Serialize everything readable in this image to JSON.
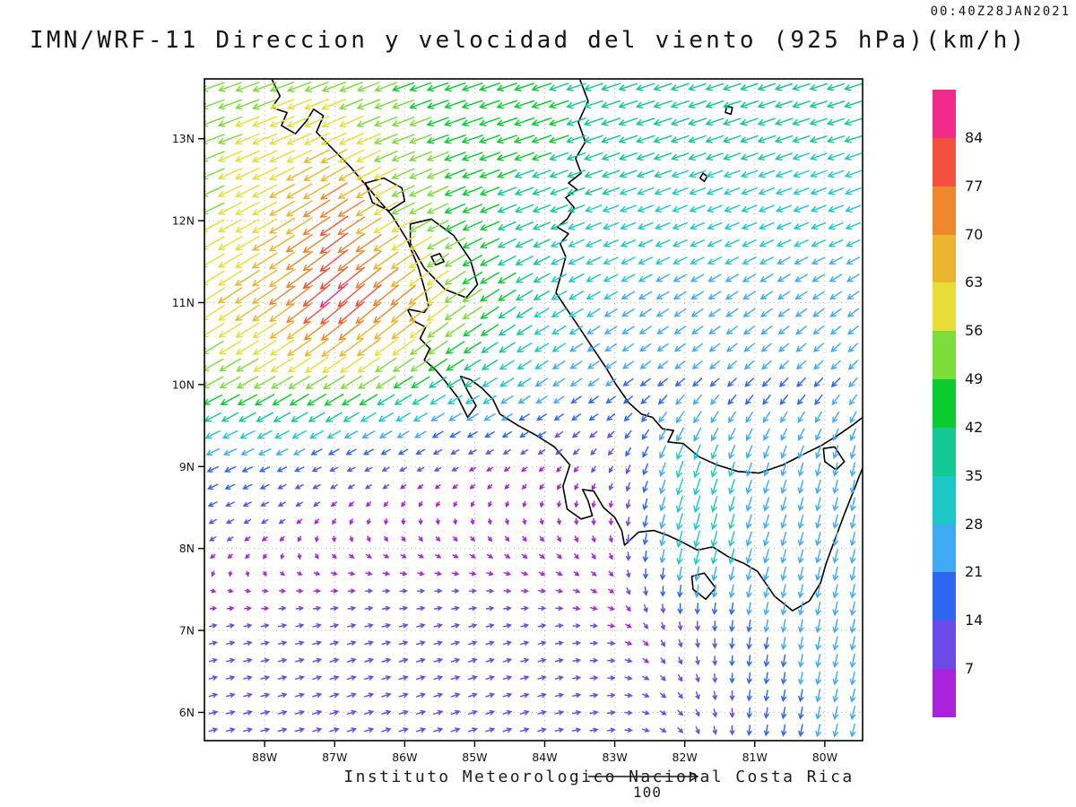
{
  "header": {
    "title": "IMN/WRF-11 Direccion y velocidad del viento (925 hPa)(km/h)",
    "timestamp": "00:40Z28JAN2021"
  },
  "footer": {
    "caption": "Instituto Meteorologico Nacional Costa Rica",
    "reference_value": "100"
  },
  "axes": {
    "lat_ticks": [
      "13N",
      "12N",
      "11N",
      "10N",
      "9N",
      "8N",
      "7N",
      "6N"
    ],
    "lat_values": [
      13,
      12,
      11,
      10,
      9,
      8,
      7,
      6
    ],
    "lon_ticks": [
      "88W",
      "87W",
      "86W",
      "85W",
      "84W",
      "83W",
      "82W",
      "81W",
      "80W"
    ],
    "lon_values": [
      -88,
      -87,
      -86,
      -85,
      -84,
      -83,
      -82,
      -81,
      -80
    ]
  },
  "colorbar": {
    "levels": [
      7,
      14,
      21,
      28,
      35,
      42,
      49,
      56,
      63,
      70,
      77,
      84
    ],
    "colors": [
      "#AA23DC",
      "#6A4BE6",
      "#2E66F0",
      "#41AAF5",
      "#1FC8C8",
      "#12C993",
      "#0ACC2E",
      "#7CDC3A",
      "#E6DE38",
      "#EBB52F",
      "#F0862B",
      "#F5503C",
      "#F02B8C"
    ]
  },
  "chart_data": {
    "type": "vector_field",
    "title": "IMN/WRF-11 Direccion y velocidad del viento (925 hPa)(km/h)",
    "valid_time_label": "00:40Z28JAN2021",
    "units": "km/h",
    "reference_vector_kmh": 100,
    "lon_range": [
      -88.86,
      -79.46
    ],
    "lat_range": [
      5.655,
      13.73
    ],
    "speed_levels_kmh": [
      7,
      14,
      21,
      28,
      35,
      42,
      49,
      56,
      63,
      70,
      77,
      84
    ],
    "grid": {
      "lats": [
        14,
        13,
        12,
        11,
        10,
        9,
        8,
        7,
        6
      ],
      "lons": [
        -89,
        -88,
        -87,
        -86,
        -85,
        -84,
        -83,
        -82,
        -81,
        -80,
        -79
      ],
      "u_kmh": [
        [
          -48,
          -50,
          -48,
          -44,
          -42,
          -40,
          -38,
          -36,
          -35,
          -35,
          -35
        ],
        [
          -50,
          -54,
          -56,
          -48,
          -44,
          -41,
          -38,
          -36,
          -35,
          -34,
          -34
        ],
        [
          -48,
          -54,
          -64,
          -50,
          -40,
          -34,
          -30,
          -28,
          -28,
          -28,
          -29
        ],
        [
          -50,
          -56,
          -64,
          -56,
          -42,
          -30,
          -24,
          -22,
          -22,
          -20,
          -20
        ],
        [
          -42,
          -46,
          -46,
          -40,
          -30,
          -22,
          -17,
          -15,
          -14,
          -14,
          -15
        ],
        [
          -20,
          -16,
          -11,
          -8,
          -6,
          -5,
          -4,
          -12,
          -8,
          -6,
          -4
        ],
        [
          -6,
          -3,
          2,
          4,
          4,
          4,
          2,
          -8,
          -8,
          -6,
          -5
        ],
        [
          9,
          10,
          11,
          11,
          10,
          9,
          7,
          2,
          -3,
          -5,
          -5
        ],
        [
          11,
          12,
          13,
          13,
          12,
          11,
          9,
          5,
          -2,
          -5,
          -6
        ]
      ],
      "v_kmh": [
        [
          -16,
          -17,
          -16,
          -15,
          -14,
          -13,
          -12,
          -12,
          -11,
          -11,
          -11
        ],
        [
          -18,
          -22,
          -26,
          -18,
          -15,
          -14,
          -13,
          -12,
          -12,
          -11,
          -11
        ],
        [
          -24,
          -30,
          -44,
          -26,
          -17,
          -13,
          -11,
          -11,
          -11,
          -11,
          -12
        ],
        [
          -32,
          -38,
          -56,
          -46,
          -28,
          -18,
          -14,
          -14,
          -15,
          -14,
          -15
        ],
        [
          -22,
          -26,
          -28,
          -24,
          -18,
          -14,
          -12,
          -13,
          -14,
          -15,
          -17
        ],
        [
          -9,
          -7,
          -5,
          -4,
          -3,
          -4,
          -7,
          -34,
          -24,
          -24,
          -26
        ],
        [
          -4,
          -3,
          -3,
          -3,
          -3,
          -4,
          -6,
          -34,
          -26,
          -24,
          -25
        ],
        [
          2,
          2,
          3,
          3,
          3,
          2,
          -1,
          -10,
          -20,
          -24,
          -26
        ],
        [
          3,
          3,
          4,
          4,
          4,
          3,
          1,
          -6,
          -16,
          -22,
          -25
        ]
      ]
    }
  },
  "map_outline": {
    "pacific_coast": [
      [
        -87.9,
        13.73
      ],
      [
        -87.78,
        13.52
      ],
      [
        -87.9,
        13.38
      ],
      [
        -87.68,
        13.32
      ],
      [
        -87.76,
        13.16
      ],
      [
        -87.56,
        13.06
      ],
      [
        -87.4,
        13.22
      ],
      [
        -87.3,
        13.36
      ],
      [
        -87.16,
        13.28
      ],
      [
        -87.26,
        13.08
      ],
      [
        -87.08,
        12.92
      ],
      [
        -86.78,
        12.66
      ],
      [
        -86.48,
        12.36
      ],
      [
        -86.18,
        12.06
      ],
      [
        -85.96,
        11.76
      ],
      [
        -85.8,
        11.42
      ],
      [
        -85.7,
        11.12
      ],
      [
        -85.66,
        10.96
      ],
      [
        -85.72,
        10.88
      ],
      [
        -85.96,
        10.92
      ],
      [
        -85.88,
        10.78
      ],
      [
        -85.7,
        10.7
      ],
      [
        -85.78,
        10.56
      ],
      [
        -85.64,
        10.44
      ],
      [
        -85.72,
        10.3
      ],
      [
        -85.56,
        10.18
      ],
      [
        -85.42,
        10.04
      ],
      [
        -85.24,
        9.84
      ],
      [
        -85.1,
        9.6
      ],
      [
        -84.98,
        9.74
      ],
      [
        -85.1,
        9.92
      ],
      [
        -85.2,
        10.1
      ],
      [
        -85.06,
        10.06
      ],
      [
        -84.9,
        9.96
      ],
      [
        -84.74,
        9.82
      ],
      [
        -84.64,
        9.64
      ],
      [
        -84.38,
        9.5
      ],
      [
        -84.12,
        9.38
      ],
      [
        -83.86,
        9.24
      ],
      [
        -83.64,
        9.02
      ],
      [
        -83.74,
        8.76
      ],
      [
        -83.68,
        8.48
      ],
      [
        -83.48,
        8.36
      ],
      [
        -83.32,
        8.4
      ],
      [
        -83.38,
        8.58
      ],
      [
        -83.46,
        8.72
      ],
      [
        -83.3,
        8.7
      ],
      [
        -83.16,
        8.5
      ],
      [
        -83.0,
        8.38
      ],
      [
        -82.9,
        8.22
      ],
      [
        -82.86,
        8.04
      ],
      [
        -82.66,
        8.2
      ],
      [
        -82.44,
        8.22
      ],
      [
        -82.24,
        8.16
      ],
      [
        -82.04,
        8.08
      ],
      [
        -81.82,
        7.98
      ],
      [
        -81.6,
        8.02
      ],
      [
        -81.38,
        7.9
      ],
      [
        -81.16,
        7.82
      ],
      [
        -80.96,
        7.72
      ],
      [
        -80.72,
        7.42
      ],
      [
        -80.46,
        7.24
      ],
      [
        -80.22,
        7.36
      ],
      [
        -80.06,
        7.58
      ],
      [
        -79.98,
        7.82
      ],
      [
        -79.86,
        8.1
      ],
      [
        -79.72,
        8.42
      ],
      [
        -79.58,
        8.72
      ],
      [
        -79.5,
        8.9
      ],
      [
        -79.46,
        8.98
      ]
    ],
    "caribbean_coast": [
      [
        -83.5,
        13.73
      ],
      [
        -83.38,
        13.46
      ],
      [
        -83.52,
        13.2
      ],
      [
        -83.42,
        12.96
      ],
      [
        -83.56,
        12.76
      ],
      [
        -83.48,
        12.58
      ],
      [
        -83.66,
        12.46
      ],
      [
        -83.54,
        12.38
      ],
      [
        -83.7,
        12.28
      ],
      [
        -83.58,
        12.16
      ],
      [
        -83.68,
        12.02
      ],
      [
        -83.82,
        11.92
      ],
      [
        -83.66,
        11.84
      ],
      [
        -83.78,
        11.72
      ],
      [
        -83.7,
        11.56
      ],
      [
        -83.76,
        11.36
      ],
      [
        -83.84,
        11.12
      ],
      [
        -83.7,
        10.94
      ],
      [
        -83.54,
        10.74
      ],
      [
        -83.34,
        10.48
      ],
      [
        -83.12,
        10.2
      ],
      [
        -82.98,
        10.0
      ],
      [
        -82.8,
        9.78
      ],
      [
        -82.62,
        9.64
      ],
      [
        -82.46,
        9.6
      ],
      [
        -82.32,
        9.46
      ],
      [
        -82.16,
        9.44
      ],
      [
        -82.24,
        9.3
      ],
      [
        -82.02,
        9.28
      ],
      [
        -81.8,
        9.12
      ],
      [
        -81.54,
        9.02
      ],
      [
        -81.24,
        8.94
      ],
      [
        -80.94,
        8.92
      ],
      [
        -80.6,
        9.02
      ],
      [
        -80.28,
        9.16
      ],
      [
        -80.04,
        9.26
      ],
      [
        -79.78,
        9.4
      ],
      [
        -79.58,
        9.52
      ],
      [
        -79.46,
        9.6
      ]
    ],
    "lake_nicaragua": [
      [
        -85.92,
        11.96
      ],
      [
        -85.62,
        12.02
      ],
      [
        -85.3,
        11.82
      ],
      [
        -85.06,
        11.52
      ],
      [
        -84.96,
        11.22
      ],
      [
        -85.12,
        11.06
      ],
      [
        -85.42,
        11.16
      ],
      [
        -85.72,
        11.42
      ],
      [
        -85.92,
        11.72
      ],
      [
        -85.92,
        11.96
      ]
    ],
    "ometepe_island": [
      [
        -85.62,
        11.56
      ],
      [
        -85.5,
        11.6
      ],
      [
        -85.44,
        11.5
      ],
      [
        -85.56,
        11.46
      ],
      [
        -85.62,
        11.56
      ]
    ],
    "lake_managua": [
      [
        -86.56,
        12.46
      ],
      [
        -86.3,
        12.52
      ],
      [
        -86.04,
        12.4
      ],
      [
        -86.0,
        12.24
      ],
      [
        -86.22,
        12.12
      ],
      [
        -86.46,
        12.22
      ],
      [
        -86.56,
        12.46
      ]
    ],
    "providencia_island": [
      [
        -81.4,
        13.4
      ],
      [
        -81.32,
        13.38
      ],
      [
        -81.34,
        13.3
      ],
      [
        -81.42,
        13.32
      ],
      [
        -81.4,
        13.4
      ]
    ],
    "san_andres_island": [
      [
        -81.74,
        12.58
      ],
      [
        -81.68,
        12.54
      ],
      [
        -81.72,
        12.48
      ],
      [
        -81.78,
        12.52
      ],
      [
        -81.74,
        12.58
      ]
    ],
    "coiba_island": [
      [
        -81.9,
        7.66
      ],
      [
        -81.72,
        7.7
      ],
      [
        -81.56,
        7.52
      ],
      [
        -81.7,
        7.38
      ],
      [
        -81.88,
        7.5
      ],
      [
        -81.9,
        7.66
      ]
    ],
    "gatun_lake": [
      [
        -80.02,
        9.22
      ],
      [
        -79.86,
        9.24
      ],
      [
        -79.72,
        9.06
      ],
      [
        -79.84,
        8.96
      ],
      [
        -80.0,
        9.06
      ],
      [
        -80.02,
        9.22
      ]
    ]
  }
}
